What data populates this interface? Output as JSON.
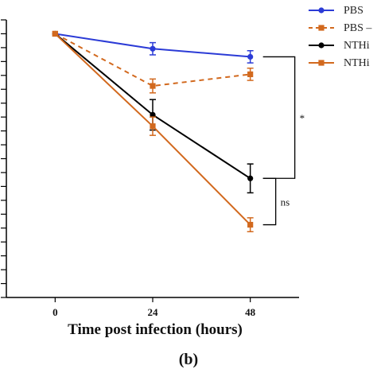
{
  "chart_data": {
    "type": "line",
    "xlabel": "Time post infection (hours)",
    "x": [
      0,
      24,
      48
    ],
    "x_tick_labels": [
      "0",
      "24",
      "48"
    ],
    "xlim": [
      -12,
      60
    ],
    "ylim": [
      -95,
      5
    ],
    "y_tick_count": 20,
    "grid": false,
    "legend_position": "top-right",
    "series": [
      {
        "name": "PBS",
        "color": "#2b3bd6",
        "marker": "circle",
        "dash": false,
        "values": [
          0,
          -5.4,
          -8.3
        ],
        "errors": [
          0,
          2.2,
          2.2
        ]
      },
      {
        "name": "PBS –",
        "color": "#d2691e",
        "marker": "square",
        "dash": true,
        "values": [
          0,
          -18.8,
          -14.6
        ],
        "errors": [
          0,
          2.5,
          2.2
        ]
      },
      {
        "name": "NTHi",
        "color": "#000000",
        "marker": "circle",
        "dash": false,
        "values": [
          0,
          -29.2,
          -52.1
        ],
        "errors": [
          0,
          5.5,
          5.2
        ]
      },
      {
        "name": "NTHi",
        "color": "#d2691e",
        "marker": "square",
        "dash": false,
        "values": [
          0,
          -33.3,
          -68.8
        ],
        "errors": [
          0,
          3.3,
          2.5
        ]
      }
    ],
    "annotations": [
      {
        "text": "*",
        "between": [
          0,
          2
        ],
        "at_x": 48
      },
      {
        "text": "ns",
        "between": [
          2,
          3
        ],
        "at_x": 48
      }
    ]
  },
  "caption": "(b)"
}
